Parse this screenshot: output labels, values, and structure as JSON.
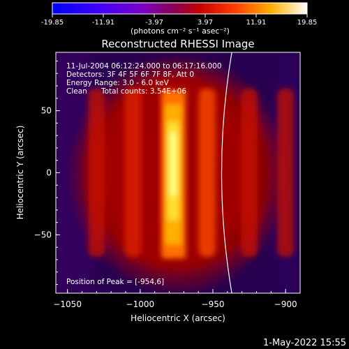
{
  "colorbar": {
    "tick_labels": [
      "-19.85",
      "-11.91",
      "-3.97",
      "3.97",
      "11.91",
      "19.85"
    ],
    "tick_values": [
      -19.85,
      -11.91,
      -3.97,
      3.97,
      11.91,
      19.85
    ],
    "range": [
      -19.85,
      19.85
    ],
    "unit_label": "(photons cm⁻² s⁻¹ asec⁻²)"
  },
  "chart_data": {
    "type": "heatmap",
    "title": "Reconstructed RHESSI Image",
    "xlabel": "Heliocentric X (arcsec)",
    "ylabel": "Heliocentric Y (arcsec)",
    "xlim": [
      -1058,
      -890
    ],
    "ylim": [
      -97,
      97
    ],
    "x_ticks": [
      -1050,
      -1000,
      -950,
      -900
    ],
    "x_tick_labels": [
      "−1050",
      "−1000",
      "−950",
      "−900"
    ],
    "y_ticks": [
      -50,
      0,
      50
    ],
    "y_tick_labels": [
      "−50",
      "0",
      "50"
    ],
    "annotations": [
      "11-Jul-2004 06:12:24.000 to 06:17:16.000",
      "Detectors: 3F 4F 5F 6F 7F 8F, Att 0",
      "Energy Range: 3.0 - 6.0 keV",
      "Clean",
      "Total counts: 3.54E+06"
    ],
    "peak_label": "Position of Peak = [-954,6]",
    "peak_position": [
      -954,
      6
    ],
    "limb": [
      [
        -937,
        -97
      ],
      [
        -944,
        0
      ],
      [
        -937,
        97
      ]
    ],
    "columns_x": [
      -1030,
      -1005,
      -980,
      -954,
      -925,
      -900
    ],
    "columns_peak": [
      11,
      12,
      13.5,
      19.85,
      10,
      9.5
    ]
  },
  "timestamp": "1-May-2022 15:55"
}
